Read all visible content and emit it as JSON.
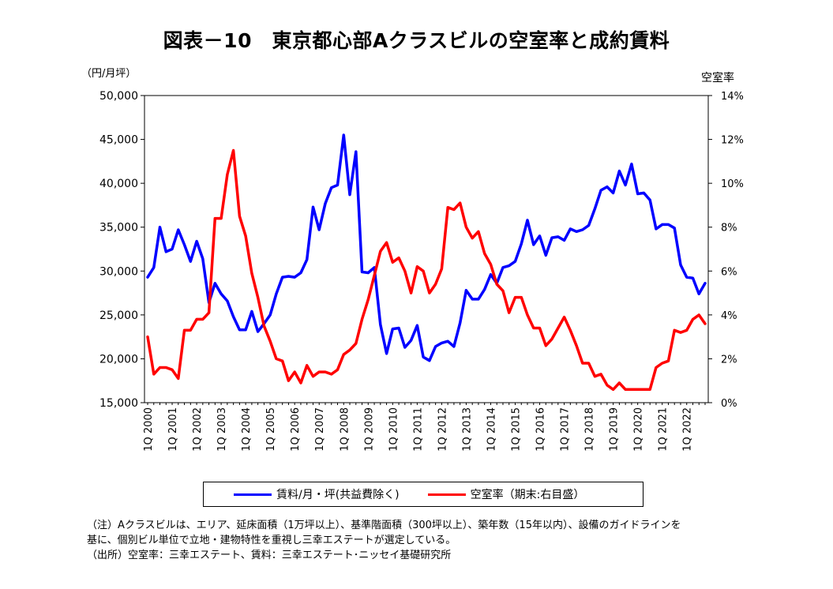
{
  "chart_data": {
    "type": "line",
    "title": "図表－10　東京都心部Aクラスビルの空室率と成約賃料",
    "y_left_unit": "（円/月坪）",
    "y_right_unit": "空室率",
    "y_left_ticks": [
      "15,000",
      "20,000",
      "25,000",
      "30,000",
      "35,000",
      "40,000",
      "45,000",
      "50,000"
    ],
    "y_left_lim": [
      15000,
      50000
    ],
    "y_right_ticks": [
      "0%",
      "2%",
      "4%",
      "6%",
      "8%",
      "10%",
      "12%",
      "14%"
    ],
    "y_right_lim": [
      0,
      14
    ],
    "x_tick_labels": [
      "1Q 2000",
      "1Q 2001",
      "1Q 2002",
      "1Q 2003",
      "1Q 2004",
      "1Q 2005",
      "1Q 2006",
      "1Q 2007",
      "1Q 2008",
      "1Q 2009",
      "1Q 2010",
      "1Q 2011",
      "1Q 2012",
      "1Q 2013",
      "1Q 2014",
      "1Q 2015",
      "1Q 2016",
      "1Q 2017",
      "1Q 2018",
      "1Q 2019",
      "1Q 2020",
      "1Q 2021",
      "1Q 2022"
    ],
    "legend_position": "bottom",
    "series": [
      {
        "name": "賃料/月・坪(共益費除く)",
        "axis": "left",
        "color": "#0000ff",
        "values": [
          29300,
          30400,
          35000,
          32200,
          32500,
          34700,
          33000,
          31100,
          33400,
          31400,
          26400,
          28600,
          27400,
          26600,
          24800,
          23300,
          23300,
          25400,
          23100,
          24000,
          25000,
          27400,
          29300,
          29400,
          29300,
          29800,
          31300,
          37300,
          34700,
          37700,
          39500,
          39800,
          45500,
          38700,
          43600,
          29900,
          29800,
          30400,
          23900,
          20600,
          23400,
          23500,
          21300,
          22100,
          23800,
          20200,
          19800,
          21400,
          21800,
          22000,
          21400,
          24100,
          27800,
          26800,
          26800,
          27900,
          29600,
          28600,
          30400,
          30600,
          31100,
          33100,
          35800,
          33000,
          34000,
          31800,
          33800,
          33900,
          33500,
          34800,
          34500,
          34700,
          35200,
          37100,
          39200,
          39600,
          38900,
          41400,
          39800,
          42200,
          38800,
          38900,
          38100,
          34800,
          35300,
          35300,
          34900,
          30700,
          29300,
          29200,
          27400,
          28600
        ]
      },
      {
        "name": "空室率（期末:右目盛）",
        "axis": "right",
        "color": "#ff0000",
        "values": [
          3.0,
          1.3,
          1.6,
          1.6,
          1.5,
          1.1,
          3.3,
          3.3,
          3.8,
          3.8,
          4.1,
          8.4,
          8.4,
          10.4,
          11.5,
          8.5,
          7.6,
          5.9,
          4.8,
          3.5,
          2.8,
          2.0,
          1.9,
          1.0,
          1.4,
          0.9,
          1.7,
          1.2,
          1.4,
          1.4,
          1.3,
          1.5,
          2.2,
          2.4,
          2.7,
          3.8,
          4.7,
          5.8,
          6.9,
          7.3,
          6.4,
          6.6,
          6.0,
          5.0,
          6.2,
          6.0,
          5.0,
          5.4,
          6.1,
          8.9,
          8.8,
          9.1,
          8.0,
          7.5,
          7.8,
          6.8,
          6.3,
          5.4,
          5.1,
          4.1,
          4.8,
          4.8,
          4.0,
          3.4,
          3.4,
          2.6,
          2.9,
          3.4,
          3.9,
          3.3,
          2.6,
          1.8,
          1.8,
          1.2,
          1.3,
          0.8,
          0.6,
          0.9,
          0.6,
          0.6,
          0.6,
          0.6,
          0.6,
          1.6,
          1.8,
          1.9,
          3.3,
          3.2,
          3.3,
          3.8,
          4.0,
          3.6
        ]
      }
    ]
  },
  "legend": {
    "rent_label": "賃料/月・坪(共益費除く)",
    "vacancy_label": "空室率（期末:右目盛）"
  },
  "notes": {
    "line1": "（注）Aクラスビルは、エリア、延床面積（1万坪以上）、基準階面積（300坪以上）、築年数（15年以内）、設備のガイドラインを",
    "line2": "基に、個別ビル単位で立地・建物特性を重視し三幸エステートが選定している。",
    "line3": "（出所）空室率：三幸エステート、賃料：三幸エステート･ニッセイ基礎研究所"
  }
}
